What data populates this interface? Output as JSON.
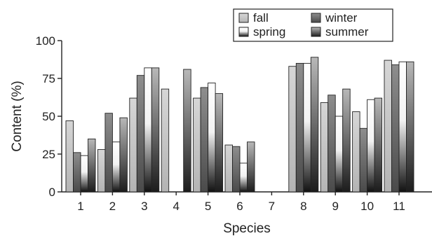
{
  "chart_data": {
    "type": "bar",
    "title": "",
    "xlabel": "Species",
    "ylabel": "Content (%)",
    "ylim": [
      0,
      100
    ],
    "yticks": [
      0,
      25,
      50,
      75,
      100
    ],
    "grid": false,
    "legend_position": "top-right",
    "categories": [
      "1",
      "2",
      "3",
      "4",
      "5",
      "6",
      "7",
      "8",
      "9",
      "10",
      "11"
    ],
    "series": [
      {
        "name": "fall",
        "values": [
          47,
          28,
          62,
          68,
          62,
          31,
          null,
          83,
          59,
          53,
          87
        ]
      },
      {
        "name": "winter",
        "values": [
          26,
          52,
          77,
          null,
          69,
          30,
          null,
          85,
          64,
          42,
          84
        ]
      },
      {
        "name": "spring",
        "values": [
          24,
          33,
          82,
          null,
          72,
          19,
          null,
          85,
          50,
          61,
          86
        ]
      },
      {
        "name": "summer",
        "values": [
          35,
          49,
          82,
          81,
          65,
          33,
          null,
          89,
          68,
          62,
          86
        ]
      }
    ],
    "legend_order": [
      "fall",
      "winter",
      "spring",
      "summer"
    ]
  }
}
